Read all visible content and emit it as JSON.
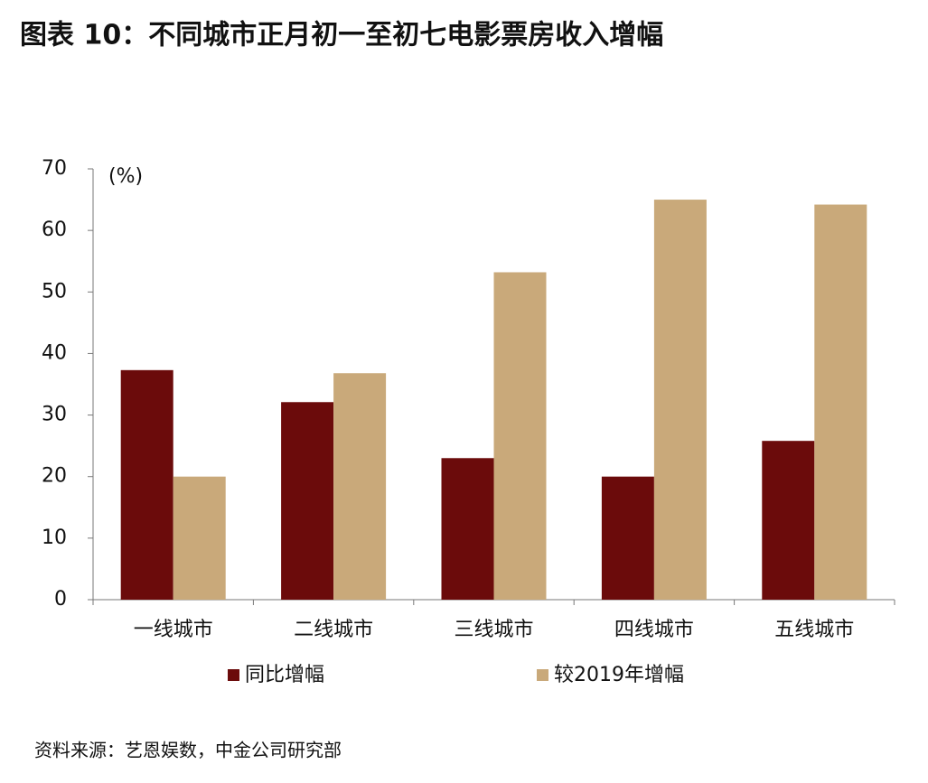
{
  "chart_data": {
    "type": "bar",
    "title": "图表 10：不同城市正月初一至初七电影票房收入增幅",
    "y_unit_label": "(%)",
    "categories": [
      "一线城市",
      "二线城市",
      "三线城市",
      "四线城市",
      "五线城市"
    ],
    "series": [
      {
        "name": "同比增幅",
        "color": "#6b0b0b",
        "values": [
          37.3,
          32.1,
          23,
          20,
          25.8
        ]
      },
      {
        "name": "较2019年增幅",
        "color": "#c9a97a",
        "values": [
          20,
          36.8,
          53.2,
          65,
          64.2
        ]
      }
    ],
    "ylim": [
      0,
      70
    ],
    "yticks": [
      0,
      10,
      20,
      30,
      40,
      50,
      60,
      70
    ],
    "legend": "bottom",
    "source": "资料来源：艺恩娱数，中金公司研究部"
  }
}
